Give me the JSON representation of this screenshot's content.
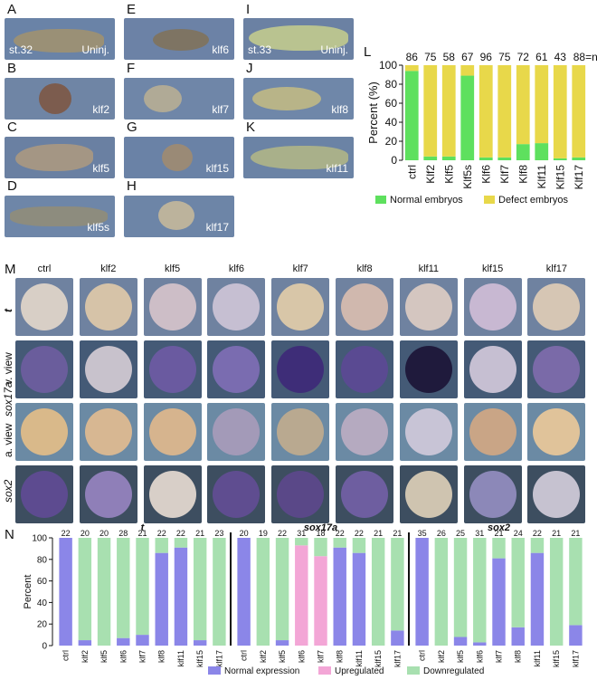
{
  "panel_letters": [
    "A",
    "B",
    "C",
    "D",
    "E",
    "F",
    "G",
    "H",
    "I",
    "J",
    "K",
    "L",
    "M",
    "N"
  ],
  "tiles": {
    "A": {
      "stage": "st.32",
      "treat": "Uninj."
    },
    "B": {
      "treat": "klf2"
    },
    "C": {
      "treat": "klf5"
    },
    "D": {
      "treat": "klf5s"
    },
    "E": {
      "treat": "klf6"
    },
    "F": {
      "treat": "klf7"
    },
    "G": {
      "treat": "klf15"
    },
    "H": {
      "treat": "klf17"
    },
    "I": {
      "stage": "st.33",
      "treat": "Uninj."
    },
    "J": {
      "treat": "klf8"
    },
    "K": {
      "treat": "klf11"
    }
  },
  "panelM": {
    "columns": [
      "ctrl",
      "klf2",
      "klf5",
      "klf6",
      "klf7",
      "klf8",
      "klf11",
      "klf15",
      "klf17"
    ],
    "rows": [
      {
        "label": "t"
      },
      {
        "label": "v. view"
      },
      {
        "label": "a. view"
      },
      {
        "label": "sox2"
      }
    ],
    "gene_label": "sox17a"
  },
  "chart_data": [
    {
      "type": "bar",
      "panel": "L",
      "categories": [
        "ctrl",
        "Klf2",
        "Klf5",
        "Klf5s",
        "Klf6",
        "Klf7",
        "Klf8",
        "Klf11",
        "Klf15",
        "Klf17"
      ],
      "n_labels": [
        "86",
        "75",
        "58",
        "67",
        "96",
        "75",
        "72",
        "61",
        "43",
        "88=n"
      ],
      "series": [
        {
          "name": "Normal embryos",
          "color": "#5ee05e",
          "values": [
            94,
            4,
            4,
            89,
            3,
            3,
            17,
            18,
            2,
            3
          ]
        },
        {
          "name": "Defect embryos",
          "color": "#e8d84a",
          "values": [
            6,
            96,
            96,
            11,
            97,
            97,
            83,
            82,
            98,
            97
          ]
        }
      ],
      "ylabel": "Percent (%)",
      "yticks": [
        "0",
        "20",
        "40",
        "60",
        "80",
        "100"
      ],
      "ylim": [
        0,
        100
      ],
      "legend": "bottom"
    },
    {
      "type": "bar",
      "panel": "N",
      "groups": [
        "t",
        "sox17a",
        "sox2"
      ],
      "categories": [
        "ctrl",
        "klf2",
        "klf5",
        "klf6",
        "klf7",
        "klf8",
        "klf11",
        "klf15",
        "klf17"
      ],
      "n_labels": [
        [
          "22",
          "20",
          "20",
          "28",
          "21",
          "22",
          "22",
          "21",
          "23"
        ],
        [
          "20",
          "19",
          "22",
          "31",
          "18",
          "22",
          "22",
          "21",
          "21"
        ],
        [
          "35",
          "26",
          "25",
          "31",
          "21",
          "24",
          "22",
          "21",
          "21"
        ]
      ],
      "series": [
        {
          "name": "Normal expression",
          "color": "#8b86e8",
          "values": [
            [
              100,
              5,
              0,
              7,
              10,
              86,
              91,
              5,
              0
            ],
            [
              100,
              0,
              5,
              0,
              0,
              91,
              86,
              0,
              14
            ],
            [
              100,
              0,
              8,
              3,
              81,
              17,
              86,
              0,
              19
            ]
          ]
        },
        {
          "name": "Upregulated",
          "color": "#f3a6d6",
          "values": [
            [
              0,
              0,
              0,
              0,
              0,
              0,
              0,
              0,
              0
            ],
            [
              0,
              0,
              0,
              93,
              83,
              0,
              0,
              0,
              0
            ],
            [
              0,
              0,
              0,
              0,
              0,
              0,
              0,
              0,
              0
            ]
          ]
        },
        {
          "name": "Downregulated",
          "color": "#a8e0b0",
          "values": [
            [
              0,
              95,
              100,
              93,
              90,
              14,
              9,
              95,
              100
            ],
            [
              0,
              100,
              95,
              7,
              17,
              9,
              14,
              100,
              86
            ],
            [
              0,
              100,
              92,
              97,
              19,
              83,
              14,
              100,
              81
            ]
          ]
        }
      ],
      "ylabel": "Percent",
      "yticks": [
        "0",
        "20",
        "40",
        "60",
        "80",
        "100"
      ],
      "ylim": [
        0,
        100
      ],
      "legend": "bottom"
    }
  ]
}
